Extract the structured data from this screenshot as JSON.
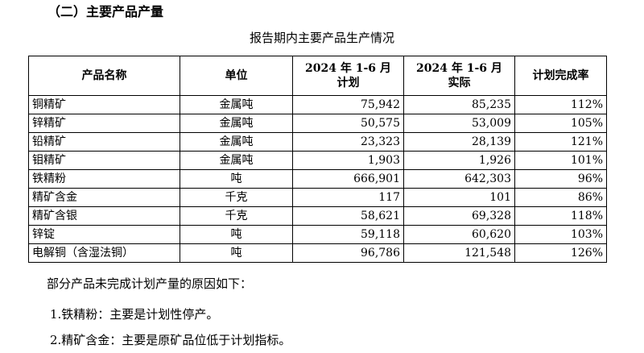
{
  "section_heading": "（二）主要产品产量",
  "table_caption": "报告期内主要产品生产情况",
  "table": {
    "headers": [
      "产品名称",
      "单位",
      "2024 年 1-6 月\n计划",
      "2024 年 1-6 月\n实际",
      "计划完成率"
    ],
    "rows": [
      [
        "铜精矿",
        "金属吨",
        "75,942",
        "85,235",
        "112%"
      ],
      [
        "锌精矿",
        "金属吨",
        "50,575",
        "53,009",
        "105%"
      ],
      [
        "铅精矿",
        "金属吨",
        "23,323",
        "28,139",
        "121%"
      ],
      [
        "钼精矿",
        "金属吨",
        "1,903",
        "1,926",
        "101%"
      ],
      [
        "铁精粉",
        "吨",
        "666,901",
        "642,303",
        "96%"
      ],
      [
        "精矿含金",
        "千克",
        "117",
        "101",
        "86%"
      ],
      [
        "精矿含银",
        "千克",
        "58,621",
        "69,328",
        "118%"
      ],
      [
        "锌锭",
        "吨",
        "59,118",
        "60,620",
        "103%"
      ],
      [
        "电解铜（含湿法铜）",
        "吨",
        "96,786",
        "121,548",
        "126%"
      ]
    ]
  },
  "notes": {
    "intro": "部分产品未完成计划产量的原因如下：",
    "items": [
      "1.铁精粉：主要是计划性停产。",
      "2.精矿含金：主要是原矿品位低于计划指标。"
    ]
  }
}
